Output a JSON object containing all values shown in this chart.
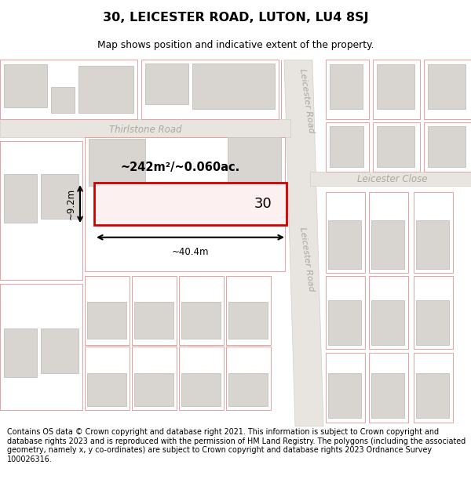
{
  "title_line1": "30, LEICESTER ROAD, LUTON, LU4 8SJ",
  "title_line2": "Map shows position and indicative extent of the property.",
  "footer_text": "Contains OS data © Crown copyright and database right 2021. This information is subject to Crown copyright and database rights 2023 and is reproduced with the permission of HM Land Registry. The polygons (including the associated geometry, namely x, y co-ordinates) are subject to Crown copyright and database rights 2023 Ordnance Survey 100026316.",
  "map_bg": "#ffffff",
  "bld_fill": "#d8d5d0",
  "bld_edge": "#c8c5c0",
  "plot_edge": "#e8a0a0",
  "plot_fill": "#ffffff",
  "road_fill": "#e8e5e0",
  "road_edge": "#d0cdc8",
  "highlight_fill": "#fdf0f0",
  "highlight_edge": "#cc0000",
  "label_color": "#aaa8a0",
  "dim_color": "#000000",
  "area_text": "~242m²/~0.060ac.",
  "width_label": "~40.4m",
  "height_label": "~9.2m",
  "number_label": "30",
  "road_leicester": "Leicester Road",
  "road_thirlstone": "Thirlstone Road",
  "road_close": "Leicester Close"
}
